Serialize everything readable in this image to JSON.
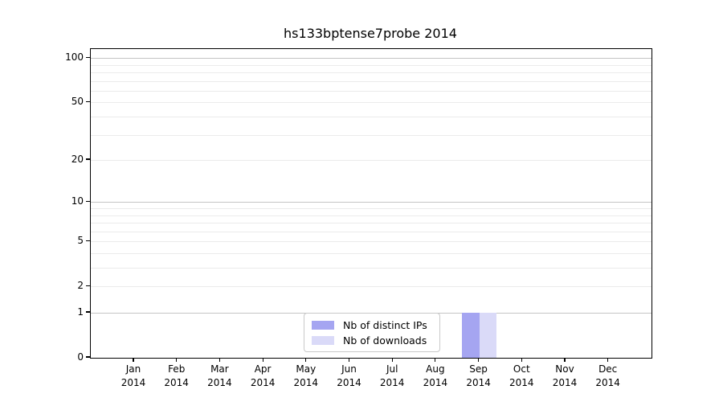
{
  "figure": {
    "background": "#ffffff"
  },
  "chart_data": {
    "type": "bar",
    "title": "hs133bptense7probe 2014",
    "categories": [
      "Jan 2014",
      "Feb 2014",
      "Mar 2014",
      "Apr 2014",
      "May 2014",
      "Jun 2014",
      "Jul 2014",
      "Aug 2014",
      "Sep 2014",
      "Oct 2014",
      "Nov 2014",
      "Dec 2014"
    ],
    "series": [
      {
        "name": "Nb of distinct IPs",
        "color": "#a5a5f1",
        "values": [
          0,
          0,
          0,
          0,
          0,
          0,
          0,
          0,
          1,
          0,
          0,
          0
        ]
      },
      {
        "name": "Nb of downloads",
        "color": "#dadaf8",
        "values": [
          0,
          0,
          0,
          0,
          0,
          0,
          0,
          0,
          1,
          0,
          0,
          0
        ]
      }
    ],
    "y_scale": "log1p",
    "y_ticks": [
      0,
      1,
      2,
      5,
      10,
      20,
      50,
      100
    ],
    "y_minor_gridlines": [
      2,
      3,
      4,
      5,
      6,
      7,
      8,
      9,
      20,
      30,
      40,
      50,
      60,
      70,
      80,
      90
    ],
    "y_major_gridlines": [
      1,
      10,
      100
    ],
    "ylim": [
      0,
      115
    ],
    "grid": true,
    "legend_position": "inside-bottom-center",
    "colors": {
      "grid_minor": "#ebebeb",
      "grid_major": "#c4c4c4",
      "axis": "#000000"
    }
  }
}
